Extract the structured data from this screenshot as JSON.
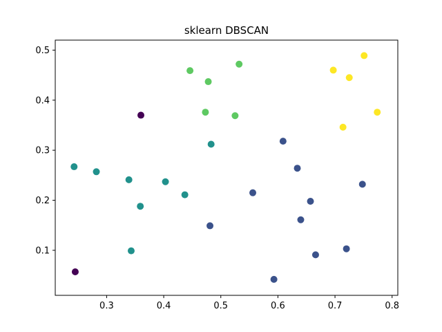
{
  "chart_data": {
    "type": "scatter",
    "title": "sklearn DBSCAN",
    "xlabel": "",
    "ylabel": "",
    "xlim": [
      0.21,
      0.81
    ],
    "ylim": [
      0.01,
      0.52
    ],
    "xticks": [
      0.3,
      0.4,
      0.5,
      0.6,
      0.7,
      0.8
    ],
    "yticks": [
      0.1,
      0.2,
      0.3,
      0.4,
      0.5
    ],
    "xtick_labels": [
      "0.3",
      "0.4",
      "0.5",
      "0.6",
      "0.7",
      "0.8"
    ],
    "ytick_labels": [
      "0.1",
      "0.2",
      "0.3",
      "0.4",
      "0.5"
    ],
    "grid": false,
    "legend": "none",
    "colors": {
      "noise": "#440154",
      "cluster0": "#3b528b",
      "cluster1": "#21918c",
      "cluster2": "#5ec962",
      "cluster3": "#fde725"
    },
    "series": [
      {
        "cluster": "noise",
        "color": "#440154",
        "points": [
          [
            0.36,
            0.37
          ],
          [
            0.245,
            0.057
          ]
        ]
      },
      {
        "cluster": "cluster1",
        "color": "#21918c",
        "points": [
          [
            0.243,
            0.267
          ],
          [
            0.282,
            0.257
          ],
          [
            0.339,
            0.241
          ],
          [
            0.359,
            0.188
          ],
          [
            0.343,
            0.099
          ],
          [
            0.403,
            0.237
          ],
          [
            0.437,
            0.211
          ],
          [
            0.483,
            0.312
          ]
        ]
      },
      {
        "cluster": "cluster2",
        "color": "#5ec962",
        "points": [
          [
            0.446,
            0.459
          ],
          [
            0.478,
            0.437
          ],
          [
            0.532,
            0.472
          ],
          [
            0.473,
            0.376
          ],
          [
            0.525,
            0.369
          ]
        ]
      },
      {
        "cluster": "cluster3",
        "color": "#fde725",
        "points": [
          [
            0.697,
            0.46
          ],
          [
            0.751,
            0.489
          ],
          [
            0.725,
            0.445
          ],
          [
            0.774,
            0.376
          ],
          [
            0.714,
            0.346
          ]
        ]
      },
      {
        "cluster": "cluster0",
        "color": "#3b528b",
        "points": [
          [
            0.609,
            0.318
          ],
          [
            0.634,
            0.264
          ],
          [
            0.748,
            0.232
          ],
          [
            0.556,
            0.215
          ],
          [
            0.657,
            0.198
          ],
          [
            0.64,
            0.161
          ],
          [
            0.481,
            0.149
          ],
          [
            0.72,
            0.103
          ],
          [
            0.666,
            0.091
          ],
          [
            0.593,
            0.042
          ]
        ]
      }
    ]
  }
}
